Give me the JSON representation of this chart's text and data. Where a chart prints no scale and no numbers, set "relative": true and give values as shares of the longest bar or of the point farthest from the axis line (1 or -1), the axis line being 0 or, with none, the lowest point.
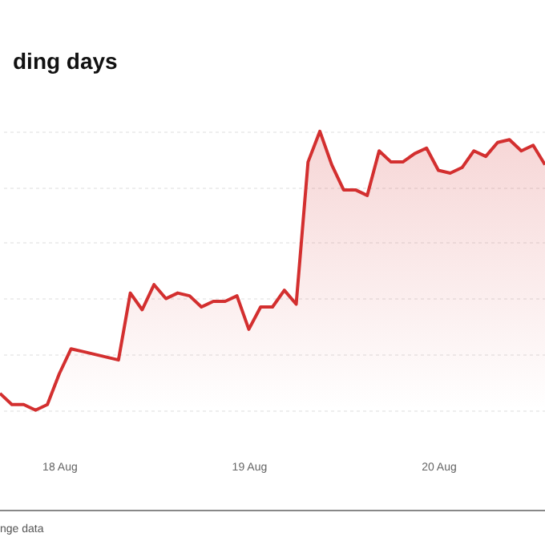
{
  "chart_data": {
    "type": "area",
    "title": "ding days",
    "annotations": [
      "nge data"
    ],
    "relative": true,
    "grid": "y",
    "categories": [
      null,
      null,
      null,
      null,
      null,
      "18 Aug",
      null,
      null,
      null,
      null,
      null,
      null,
      null,
      null,
      null,
      null,
      null,
      null,
      null,
      null,
      null,
      "19 Aug",
      null,
      null,
      null,
      null,
      null,
      null,
      null,
      null,
      null,
      null,
      null,
      null,
      null,
      null,
      null,
      "20 Aug",
      null,
      null,
      null,
      null,
      null,
      null,
      null,
      null,
      null
    ],
    "series": [
      {
        "color": "#d32f2f",
        "values": [
          0.06,
          0.02,
          0.02,
          0,
          0.02,
          0.13,
          0.22,
          0.21,
          0.2,
          0.19,
          0.18,
          0.42,
          0.36,
          0.45,
          0.4,
          0.42,
          0.41,
          0.37,
          0.39,
          0.39,
          0.41,
          0.29,
          0.37,
          0.37,
          0.43,
          0.38,
          0.89,
          1,
          0.88,
          0.79,
          0.79,
          0.77,
          0.93,
          0.89,
          0.89,
          0.92,
          0.94,
          0.86,
          0.85,
          0.87,
          0.93,
          0.91,
          0.96,
          0.97,
          0.93,
          0.95,
          0.88
        ]
      }
    ]
  }
}
